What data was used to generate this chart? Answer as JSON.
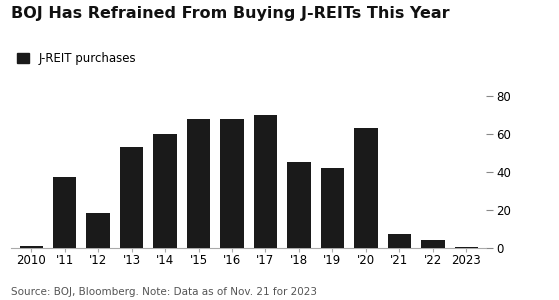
{
  "title": "BOJ Has Refrained From Buying J-REITs This Year",
  "legend_label": "J-REIT purchases",
  "source_text": "Source: BOJ, Bloomberg. Note: Data as of Nov. 21 for 2023",
  "categories": [
    "2010",
    "'11",
    "'12",
    "'13",
    "'14",
    "'15",
    "'16",
    "'17",
    "'18",
    "'19",
    "'20",
    "'21",
    "'22",
    "2023"
  ],
  "values": [
    1.0,
    37.0,
    18.0,
    53.0,
    60.0,
    68.0,
    68.0,
    70.0,
    45.0,
    42.0,
    63.0,
    7.0,
    4.0,
    0.5
  ],
  "bar_color": "#1a1a1a",
  "background_color": "#ffffff",
  "ylim": [
    0,
    80
  ],
  "yticks": [
    0,
    20,
    40,
    60,
    80
  ],
  "title_fontsize": 11.5,
  "legend_fontsize": 8.5,
  "tick_fontsize": 8.5,
  "source_fontsize": 7.5
}
